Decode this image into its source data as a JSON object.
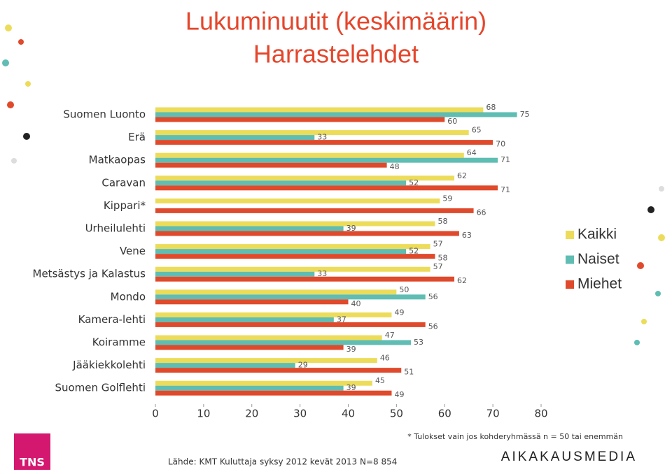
{
  "chart_data": {
    "type": "hbar",
    "title": "Lukuminuutit (keskimäärin)",
    "subtitle": "Harrastelehdet",
    "categories": [
      "Suomen Luonto",
      "Erä",
      "Matkaopas",
      "Caravan",
      "Kippari*",
      "Urheilulehti",
      "Vene",
      "Metsästys ja Kalastus",
      "Mondo",
      "Kamera-lehti",
      "Koiramme",
      "Jääkiekkolehti",
      "Suomen Golflehti"
    ],
    "series": [
      {
        "name": "Kaikki",
        "color": "#ecdc5a",
        "values": [
          68,
          65,
          64,
          62,
          59,
          58,
          57,
          57,
          50,
          49,
          47,
          46,
          45
        ]
      },
      {
        "name": "Naiset",
        "color": "#5fbdb3",
        "values": [
          75,
          33,
          71,
          52,
          null,
          39,
          52,
          33,
          56,
          37,
          53,
          29,
          39
        ]
      },
      {
        "name": "Miehet",
        "color": "#e04a2c",
        "values": [
          60,
          70,
          48,
          71,
          66,
          63,
          58,
          62,
          40,
          56,
          39,
          51,
          49
        ]
      }
    ],
    "xlim": [
      0,
      80
    ],
    "xticks": [
      0,
      10,
      20,
      30,
      40,
      50,
      60,
      70,
      80
    ],
    "legend": "right",
    "footnote": "* Tulokset vain jos kohderyhmässä n = 50 tai enemmän",
    "source": "Lähde: KMT Kuluttaja syksy 2012 kevät 2013 N=8 854",
    "logo_left": "TNS",
    "logo_right": "AIKAKAUSMEDIA"
  }
}
